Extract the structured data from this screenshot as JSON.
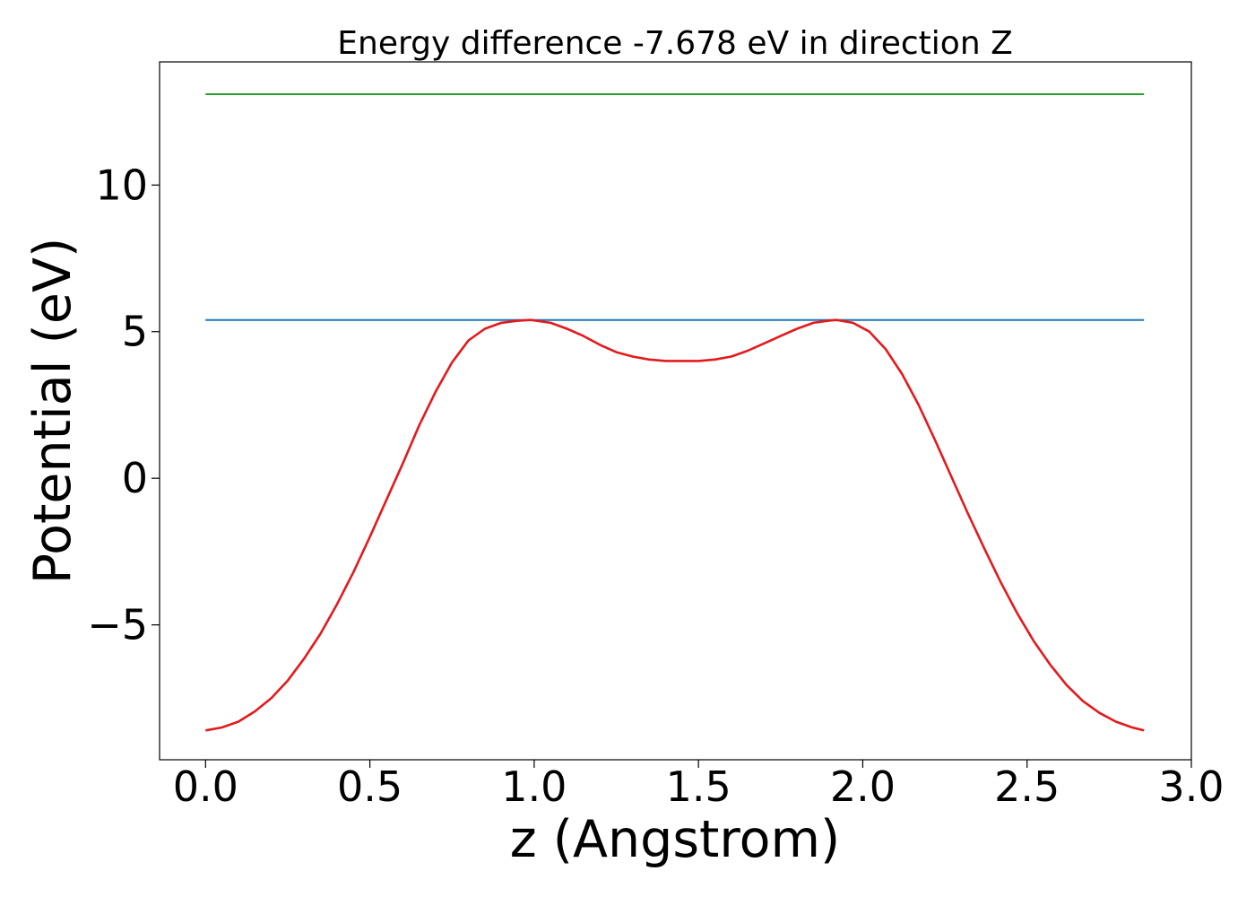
{
  "chart_data": {
    "type": "line",
    "title": "Energy difference -7.678 eV in direction Z",
    "xlabel": "z (Angstrom)",
    "ylabel": "Potential (eV)",
    "xlim": [
      -0.14,
      3.0
    ],
    "ylim": [
      -9.6,
      14.2
    ],
    "xticks": [
      0.0,
      0.5,
      1.0,
      1.5,
      2.0,
      2.5,
      3.0
    ],
    "xtick_labels": [
      "0.0",
      "0.5",
      "1.0",
      "1.5",
      "2.0",
      "2.5",
      "3.0"
    ],
    "yticks": [
      -5,
      0,
      5,
      10
    ],
    "ytick_labels": [
      "−5",
      "0",
      "5",
      "10"
    ],
    "grid": false,
    "series": [
      {
        "color": "#2ca02c",
        "x": [
          0.0,
          2.856
        ],
        "y": [
          13.1,
          13.1
        ]
      },
      {
        "color": "#1f77b4",
        "x": [
          0.0,
          2.856
        ],
        "y": [
          5.4,
          5.4
        ]
      },
      {
        "color": "#e31a1c",
        "x": [
          0.0,
          0.05,
          0.1,
          0.15,
          0.2,
          0.25,
          0.3,
          0.35,
          0.4,
          0.45,
          0.5,
          0.55,
          0.6,
          0.65,
          0.7,
          0.75,
          0.8,
          0.85,
          0.9,
          0.95,
          0.99,
          1.05,
          1.1,
          1.15,
          1.2,
          1.25,
          1.3,
          1.35,
          1.4,
          1.45,
          1.5,
          1.55,
          1.6,
          1.65,
          1.7,
          1.75,
          1.8,
          1.85,
          1.9,
          1.92,
          1.97,
          2.02,
          2.07,
          2.12,
          2.17,
          2.22,
          2.27,
          2.32,
          2.37,
          2.42,
          2.47,
          2.52,
          2.57,
          2.62,
          2.67,
          2.72,
          2.77,
          2.82,
          2.856
        ],
        "y": [
          -8.6,
          -8.5,
          -8.3,
          -7.95,
          -7.5,
          -6.9,
          -6.15,
          -5.3,
          -4.3,
          -3.2,
          -2.0,
          -0.75,
          0.5,
          1.8,
          2.95,
          3.95,
          4.7,
          5.1,
          5.3,
          5.37,
          5.4,
          5.3,
          5.1,
          4.85,
          4.55,
          4.3,
          4.15,
          4.05,
          4.0,
          4.0,
          4.0,
          4.05,
          4.15,
          4.35,
          4.6,
          4.85,
          5.1,
          5.3,
          5.38,
          5.4,
          5.3,
          5.0,
          4.4,
          3.55,
          2.5,
          1.3,
          0.05,
          -1.2,
          -2.4,
          -3.55,
          -4.6,
          -5.55,
          -6.35,
          -7.05,
          -7.6,
          -8.0,
          -8.3,
          -8.5,
          -8.6
        ]
      }
    ]
  }
}
